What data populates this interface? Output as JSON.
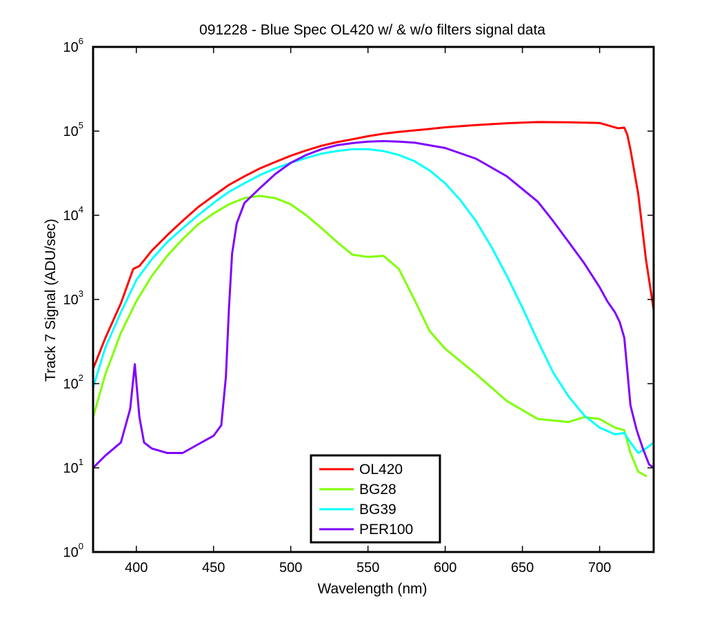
{
  "chart_data": {
    "type": "line",
    "title": "091228 - Blue Spec OL420 w/ & w/o filters signal data",
    "xlabel": "Wavelength (nm)",
    "ylabel": "Track 7 Signal (ADU/sec)",
    "xlim": [
      372,
      735
    ],
    "ylim": [
      1,
      1000000
    ],
    "yscale": "log",
    "xticks": [
      400,
      450,
      500,
      550,
      600,
      650,
      700
    ],
    "yticks": [
      {
        "base": "10",
        "exp": "0",
        "value": 1
      },
      {
        "base": "10",
        "exp": "1",
        "value": 10
      },
      {
        "base": "10",
        "exp": "2",
        "value": 100
      },
      {
        "base": "10",
        "exp": "3",
        "value": 1000
      },
      {
        "base": "10",
        "exp": "4",
        "value": 10000
      },
      {
        "base": "10",
        "exp": "5",
        "value": 100000
      },
      {
        "base": "10",
        "exp": "6",
        "value": 1000000
      }
    ],
    "grid": false,
    "legend_position": "bottom-center",
    "series": [
      {
        "name": "OL420",
        "color": "#ff0000",
        "x": [
          372,
          380,
          390,
          398,
          402,
          410,
          420,
          430,
          440,
          450,
          460,
          470,
          480,
          490,
          500,
          510,
          520,
          530,
          540,
          550,
          560,
          570,
          580,
          590,
          600,
          620,
          640,
          660,
          680,
          700,
          712,
          716,
          718,
          720,
          725,
          730,
          735
        ],
        "y": [
          150,
          350,
          900,
          2300,
          2500,
          3800,
          5800,
          8600,
          12500,
          17000,
          23000,
          29000,
          36000,
          43000,
          51000,
          59000,
          67000,
          74000,
          80000,
          87000,
          93000,
          98000,
          102000,
          106000,
          111000,
          118000,
          124000,
          128000,
          127000,
          125000,
          108000,
          110000,
          90000,
          60000,
          18000,
          3000,
          750
        ]
      },
      {
        "name": "BG28",
        "color": "#7fff00",
        "x": [
          372,
          380,
          390,
          400,
          410,
          420,
          430,
          440,
          450,
          460,
          470,
          480,
          490,
          500,
          510,
          520,
          530,
          540,
          550,
          560,
          570,
          580,
          590,
          600,
          620,
          640,
          660,
          680,
          690,
          700,
          710,
          716,
          720,
          725,
          730
        ],
        "y": [
          40,
          130,
          400,
          950,
          1900,
          3300,
          5200,
          7800,
          10500,
          13500,
          16000,
          17000,
          16000,
          13500,
          10000,
          7000,
          4800,
          3400,
          3200,
          3300,
          2300,
          1000,
          420,
          260,
          130,
          62,
          38,
          35,
          40,
          38,
          30,
          28,
          15,
          9,
          8
        ]
      },
      {
        "name": "BG39",
        "color": "#00ffff",
        "x": [
          372,
          380,
          390,
          400,
          410,
          420,
          430,
          440,
          450,
          460,
          470,
          480,
          490,
          500,
          510,
          520,
          530,
          540,
          550,
          560,
          570,
          580,
          590,
          600,
          610,
          620,
          630,
          640,
          650,
          660,
          670,
          680,
          690,
          700,
          710,
          716,
          720,
          725,
          730,
          735
        ],
        "y": [
          90,
          270,
          700,
          1700,
          3000,
          4800,
          7000,
          10000,
          14000,
          19000,
          24000,
          30000,
          36000,
          42000,
          48000,
          54000,
          58000,
          61000,
          61000,
          58000,
          52000,
          44000,
          34000,
          24000,
          15000,
          8500,
          4200,
          1900,
          800,
          320,
          135,
          70,
          42,
          30,
          25,
          26,
          20,
          15,
          17,
          20
        ]
      },
      {
        "name": "PER100",
        "color": "#7f00ff",
        "x": [
          372,
          380,
          390,
          396,
          399,
          402,
          405,
          410,
          420,
          430,
          440,
          450,
          455,
          458,
          460,
          462,
          465,
          470,
          480,
          490,
          500,
          510,
          520,
          530,
          540,
          550,
          560,
          570,
          580,
          600,
          620,
          640,
          660,
          670,
          680,
          690,
          700,
          705,
          710,
          713,
          716,
          718,
          720,
          724,
          728,
          732,
          735
        ],
        "y": [
          10,
          14,
          20,
          50,
          170,
          40,
          20,
          17,
          15,
          15,
          19,
          24,
          32,
          120,
          800,
          3500,
          8000,
          14000,
          21000,
          31000,
          42000,
          52000,
          61000,
          68000,
          72000,
          75000,
          76000,
          75000,
          73000,
          63000,
          47000,
          29000,
          14500,
          8500,
          4800,
          2700,
          1400,
          950,
          700,
          540,
          350,
          140,
          55,
          28,
          17,
          11,
          10
        ]
      }
    ]
  }
}
